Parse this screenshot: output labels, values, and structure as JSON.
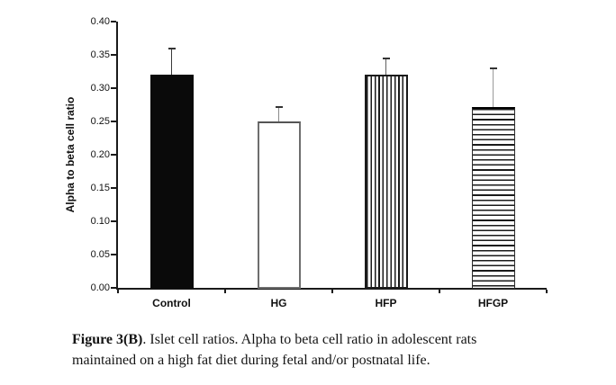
{
  "figure": {
    "caption": {
      "bold": "Figure 3(B)",
      "line1_rest": ". Islet cell ratios. Alpha to beta cell ratio in adolescent rats",
      "line2": "maintained on a high fat diet during fetal and/or postnatal life."
    }
  },
  "chart_data": {
    "type": "bar",
    "title": "",
    "xlabel": "",
    "ylabel": "Alpha to beta cell ratio",
    "categories": [
      "Control",
      "HG",
      "HFP",
      "HFGP"
    ],
    "values": [
      0.32,
      0.25,
      0.32,
      0.272
    ],
    "error_plus": [
      0.04,
      0.021,
      0.025,
      0.058
    ],
    "ylim": [
      0,
      0.4
    ],
    "ytick_step": 0.05,
    "ytick_labels": [
      "0.00",
      "0.05",
      "0.10",
      "0.15",
      "0.20",
      "0.25",
      "0.30",
      "0.35",
      "0.40"
    ],
    "grid": false,
    "legend": "none",
    "background": "#ffffff",
    "axis_color": "#1a1a1a",
    "bar_fill_styles": [
      "solid-black",
      "open-white",
      "vertical-stripes",
      "horizontal-stripes"
    ],
    "error_bar_colors": [
      "#3a3a3a",
      "#8a8a8a",
      "#606060",
      "#9a9a9a"
    ],
    "error_cap_color": "#333333"
  }
}
